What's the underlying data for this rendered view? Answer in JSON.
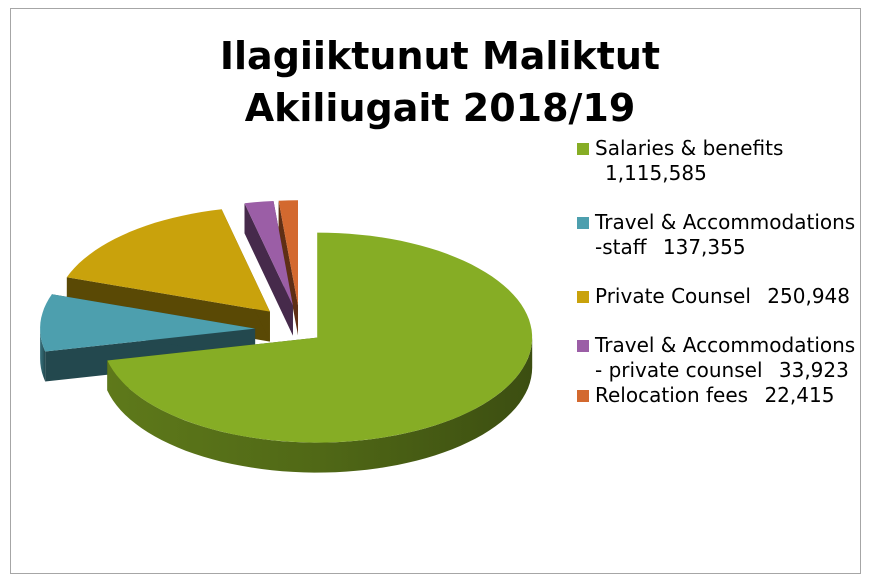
{
  "chart_data": {
    "type": "pie",
    "title": "Ilagiiktunut Maliktut Akiliugait 2018/19",
    "categories": [
      "Salaries & benefits",
      "Travel & Accommodations -staff",
      "Private Counsel",
      "Travel & Accommodations - private counsel",
      "Relocation fees"
    ],
    "values": [
      1115585,
      137355,
      250948,
      33923,
      22415
    ],
    "value_labels": [
      "1,115,585",
      "137,355",
      "250,948",
      "33,923",
      "22,415"
    ],
    "colors": [
      "#86ad25",
      "#4d9fae",
      "#c9a20c",
      "#9b5ea6",
      "#d3692f"
    ],
    "legend": "right"
  }
}
